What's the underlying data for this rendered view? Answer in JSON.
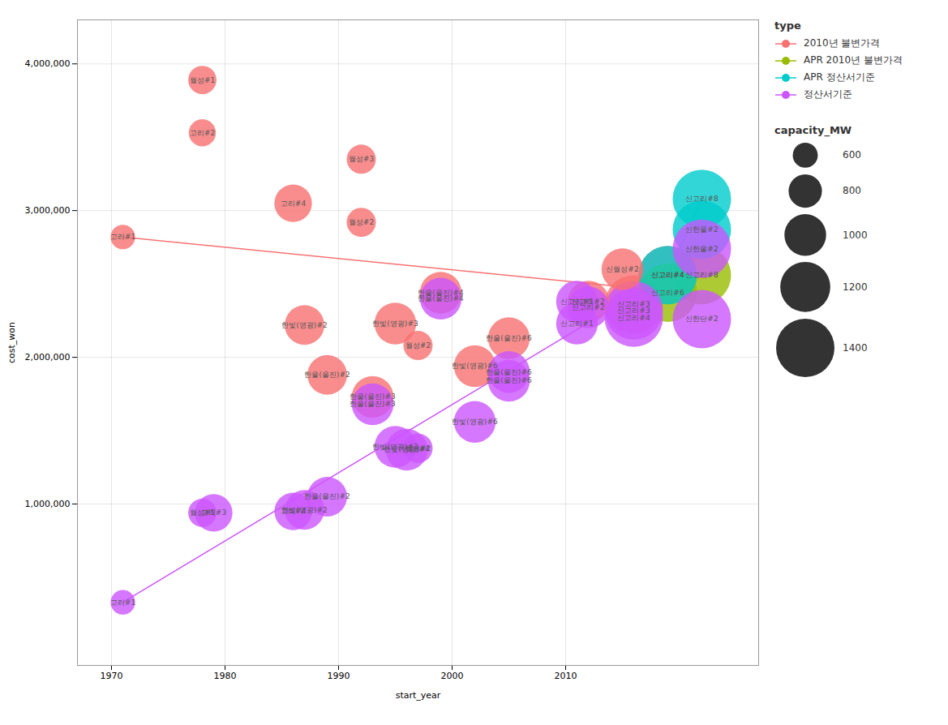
{
  "chart_data": {
    "type": "scatter",
    "xlabel": "start_year",
    "ylabel": "cost_won",
    "xlim": [
      1967,
      2027
    ],
    "ylim": [
      -100000,
      4300000
    ],
    "xticks": [
      1970,
      1980,
      1990,
      2000,
      2010
    ],
    "yticks": [
      {
        "value": 1000000,
        "label": "1,000,000"
      },
      {
        "value": 2000000,
        "label": "2,000,000"
      },
      {
        "value": 3000000,
        "label": "3,000,000"
      },
      {
        "value": 4000000,
        "label": "4,000,000"
      }
    ],
    "grid": true,
    "legend": "right",
    "legend_title": "type",
    "size_legend": {
      "title": "capacity_MW",
      "values": [
        600,
        800,
        1000,
        1200,
        1400
      ]
    },
    "series": [
      {
        "name": "2010년 불변가격",
        "color": "#f87171",
        "x": [
          1971,
          1978,
          1978,
          1986,
          1987,
          1989,
          1995,
          1997,
          1993,
          2005,
          2002,
          1999,
          1992,
          1992,
          2015,
          2019,
          2016,
          2012
        ],
        "values": [
          2820000,
          3890000,
          3530000,
          3050000,
          2220000,
          1880000,
          2230000,
          2080000,
          1730000,
          2130000,
          1940000,
          2440000,
          3350000,
          2920000,
          2600000,
          2560000,
          2360000,
          2380000
        ],
        "sizes": [
          587,
          679,
          650,
          900,
          950,
          950,
          1000,
          700,
          1000,
          1000,
          1000,
          1000,
          700,
          700,
          1000,
          1400,
          1400,
          1000
        ],
        "labels": [
          "고리#1",
          "월성#1",
          "고리#2",
          "고리#4",
          "한빛(영광)#2",
          "한울(울진)#2",
          "한빛(영광)#3",
          "월성#2",
          "한울(울진)#3",
          "한울(울진)#6",
          "한빛(영광)#6",
          "한울(울진)#4",
          "월성#3",
          "월성#2",
          "신월성#2",
          "신고리#4",
          "신고리#3",
          "신고리#2"
        ],
        "trend_x": [
          1971,
          2019
        ],
        "trend_y": [
          2820000,
          2450000
        ]
      },
      {
        "name": "APR 2010년 불변가격",
        "color": "#99bb00",
        "x": [
          2022,
          2019
        ],
        "values": [
          2560000,
          2440000
        ],
        "sizes": [
          1400,
          1400
        ],
        "labels": [
          "신고리#8",
          "신고리#6"
        ],
        "trend_x": [
          2019,
          2022
        ],
        "trend_y": [
          2440000,
          2560000
        ]
      },
      {
        "name": "APR 정산서기준",
        "color": "#00cccc",
        "x": [
          2022,
          2022,
          2019
        ],
        "values": [
          3080000,
          2870000,
          2560000
        ],
        "sizes": [
          1400,
          1400,
          1400
        ],
        "labels": [
          "신고리#8",
          "신한울#2",
          "신고리#4"
        ],
        "trend_x": [
          2019,
          2022
        ],
        "trend_y": [
          2560000,
          3080000
        ]
      },
      {
        "name": "정산서기준",
        "color": "#cc55ff",
        "x": [
          1971,
          1978,
          1987,
          1989,
          1979,
          1986,
          1995,
          1996,
          1997,
          1993,
          2005,
          2002,
          2005,
          1999,
          2011,
          2012,
          2022,
          2016,
          2022,
          2016,
          2011
        ],
        "values": [
          330000,
          940000,
          960000,
          1050000,
          940000,
          950000,
          1390000,
          1370000,
          1380000,
          1680000,
          1900000,
          1560000,
          1840000,
          2400000,
          2380000,
          2340000,
          2740000,
          2320000,
          2260000,
          2270000,
          2230000
        ],
        "sizes": [
          587,
          679,
          950,
          950,
          900,
          900,
          1000,
          1000,
          700,
          1000,
          1000,
          1000,
          1000,
          1000,
          1000,
          1000,
          1400,
          1400,
          1400,
          1400,
          1000
        ],
        "labels": [
          "고리#1",
          "월성#1",
          "한빛(영광)#2",
          "한울(울진)#2",
          "고리#3",
          "고리#4",
          "한빛(영광)#3",
          "한빛(영광)#4",
          "월성#2",
          "한울(울진)#3",
          "한울(울진)#6",
          "한빛(영광)#6",
          "한울(울진)#6",
          "한울(울진)#4",
          "신고리#1",
          "신고리#2",
          "신한울#2",
          "신고리#3",
          "신한단#2",
          "신고리#4",
          "신고리#1"
        ],
        "trend_x": [
          1971,
          2022
        ],
        "trend_y": [
          330000,
          2700000
        ]
      }
    ]
  }
}
